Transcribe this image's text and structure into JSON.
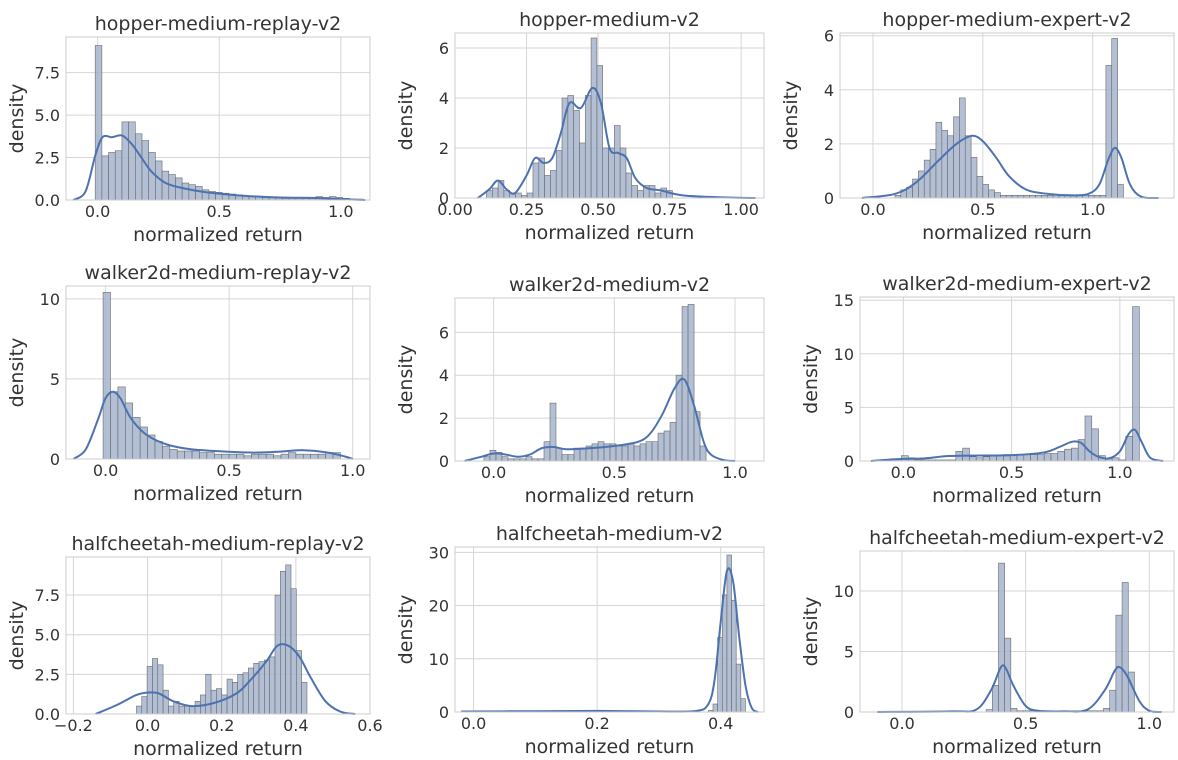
{
  "chart_data": [
    {
      "type": "bar",
      "title": "hopper-medium-replay-v2",
      "xlabel": "normalized return",
      "ylabel": "density",
      "xlim": [
        -0.13,
        1.12
      ],
      "ylim": [
        0,
        9.6
      ],
      "xticks": [
        0.0,
        0.5,
        1.0
      ],
      "xtick_labels": [
        "0.0",
        "0.5",
        "1.0"
      ],
      "yticks": [
        0,
        2.5,
        5.0,
        7.5
      ],
      "ytick_labels": [
        "0.0",
        "2.5",
        "5.0",
        "7.5"
      ],
      "bin_edges": [
        -0.01,
        1.09
      ],
      "bar_values": [
        9.1,
        2.6,
        2.8,
        2.9,
        4.6,
        4.6,
        3.9,
        3.5,
        2.8,
        2.3,
        1.7,
        1.5,
        1.3,
        1.0,
        0.9,
        0.8,
        0.6,
        0.5,
        0.45,
        0.4,
        0.35,
        0.3,
        0.25,
        0.2,
        0.2,
        0.15,
        0.15,
        0.12,
        0.1,
        0.1,
        0.1,
        0.1,
        0.1,
        0.2,
        0.15,
        0.2,
        0.15,
        0.1,
        0.05,
        0.05
      ],
      "kde": {
        "x": [
          -0.1,
          -0.05,
          -0.01,
          0.02,
          0.06,
          0.1,
          0.14,
          0.18,
          0.22,
          0.28,
          0.35,
          0.45,
          0.6,
          0.75,
          0.9,
          1.0,
          1.1
        ],
        "y": [
          0,
          0.5,
          2.6,
          3.7,
          3.7,
          3.8,
          3.3,
          2.5,
          1.7,
          1.0,
          0.7,
          0.45,
          0.25,
          0.15,
          0.12,
          0.05,
          0
        ]
      }
    },
    {
      "type": "bar",
      "title": "hopper-medium-v2",
      "xlabel": "normalized return",
      "ylabel": "density",
      "xlim": [
        0.0,
        1.08
      ],
      "ylim": [
        0,
        6.6
      ],
      "xticks": [
        0.0,
        0.25,
        0.5,
        0.75,
        1.0
      ],
      "xtick_labels": [
        "0.00",
        "0.25",
        "0.50",
        "0.75",
        "1.00"
      ],
      "yticks": [
        0,
        2,
        4,
        6
      ],
      "ytick_labels": [
        "0",
        "2",
        "4",
        "6"
      ],
      "bin_edges": [
        0.11,
        0.76
      ],
      "bar_values": [
        0.3,
        0.4,
        0.7,
        0.3,
        0.2,
        0.2,
        0.1,
        0.2,
        1.4,
        1.6,
        0.9,
        1.1,
        1.9,
        4.0,
        4.1,
        3.5,
        2.2,
        4.1,
        6.4,
        5.3,
        2.0,
        2.0,
        2.9,
        2.0,
        1.0,
        0.5,
        0.3,
        0.5,
        0.5,
        0.2,
        0.4,
        0.3
      ],
      "kde": {
        "x": [
          0.08,
          0.12,
          0.15,
          0.18,
          0.21,
          0.25,
          0.28,
          0.31,
          0.34,
          0.37,
          0.4,
          0.44,
          0.48,
          0.51,
          0.54,
          0.57,
          0.6,
          0.63,
          0.67,
          0.72,
          0.8,
          0.95,
          1.05
        ],
        "y": [
          0,
          0.35,
          0.7,
          0.35,
          0.2,
          0.9,
          1.6,
          1.4,
          1.6,
          2.6,
          3.8,
          3.6,
          4.4,
          3.8,
          2.0,
          1.8,
          1.6,
          0.8,
          0.4,
          0.3,
          0.1,
          0.02,
          0
        ]
      }
    },
    {
      "type": "bar",
      "title": "hopper-medium-expert-v2",
      "xlabel": "normalized return",
      "ylabel": "density",
      "xlim": [
        -0.15,
        1.37
      ],
      "ylim": [
        0,
        6.1
      ],
      "xticks": [
        0.0,
        0.5,
        1.0
      ],
      "xtick_labels": [
        "0.0",
        "0.5",
        "1.0"
      ],
      "yticks": [
        0,
        2,
        4,
        6
      ],
      "ytick_labels": [
        "0",
        "2",
        "4",
        "6"
      ],
      "bin_edges": [
        0.1,
        1.14
      ],
      "bar_values": [
        0.1,
        0.3,
        0.4,
        0.7,
        1.0,
        1.4,
        1.8,
        2.8,
        2.5,
        2.3,
        3.0,
        3.7,
        2.3,
        1.5,
        0.8,
        0.5,
        0.3,
        0.2,
        0.1,
        0.1,
        0.1,
        0.1,
        0.1,
        0.1,
        0.1,
        0.1,
        0.1,
        0.1,
        0.1,
        0.1,
        0.1,
        0.1,
        0.1,
        0.1,
        0.1,
        0.1,
        4.9,
        5.9,
        0.5
      ],
      "kde": {
        "x": [
          -0.05,
          0.1,
          0.2,
          0.3,
          0.38,
          0.45,
          0.5,
          0.56,
          0.62,
          0.7,
          0.8,
          0.9,
          0.98,
          1.03,
          1.07,
          1.1,
          1.13,
          1.17,
          1.22,
          1.3
        ],
        "y": [
          0,
          0.15,
          0.6,
          1.4,
          2.0,
          2.3,
          2.1,
          1.5,
          0.8,
          0.3,
          0.15,
          0.1,
          0.15,
          0.5,
          1.4,
          1.85,
          1.5,
          0.5,
          0.05,
          0
        ]
      }
    },
    {
      "type": "bar",
      "title": "walker2d-medium-replay-v2",
      "xlabel": "normalized return",
      "ylabel": "density",
      "xlim": [
        -0.16,
        1.07
      ],
      "ylim": [
        0,
        10.8
      ],
      "xticks": [
        0.0,
        0.5,
        1.0
      ],
      "xtick_labels": [
        "0.0",
        "0.5",
        "1.0"
      ],
      "yticks": [
        0,
        5,
        10
      ],
      "ytick_labels": [
        "0",
        "5",
        "10"
      ],
      "bin_edges": [
        -0.01,
        0.95
      ],
      "bar_values": [
        10.4,
        4.2,
        4.5,
        3.5,
        2.6,
        2.0,
        1.5,
        1.1,
        0.8,
        0.6,
        0.5,
        0.5,
        0.5,
        0.4,
        0.4,
        0.3,
        0.3,
        0.3,
        0.3,
        0.2,
        0.3,
        0.3,
        0.3,
        0.2,
        0.3,
        0.4,
        0.3,
        0.3,
        0.3,
        0.3,
        0.4,
        0.4
      ],
      "kde": {
        "x": [
          -0.13,
          -0.08,
          -0.03,
          0.0,
          0.03,
          0.06,
          0.1,
          0.15,
          0.2,
          0.26,
          0.35,
          0.5,
          0.6,
          0.7,
          0.8,
          0.9,
          0.97,
          1.0
        ],
        "y": [
          0,
          0.6,
          2.5,
          3.8,
          4.2,
          3.8,
          2.6,
          1.7,
          1.2,
          0.85,
          0.6,
          0.45,
          0.4,
          0.45,
          0.55,
          0.4,
          0.15,
          0
        ]
      }
    },
    {
      "type": "bar",
      "title": "walker2d-medium-v2",
      "xlabel": "normalized return",
      "ylabel": "density",
      "xlim": [
        -0.16,
        1.12
      ],
      "ylim": [
        0,
        7.6
      ],
      "xticks": [
        0.0,
        0.5,
        1.0
      ],
      "xtick_labels": [
        "0.0",
        "0.5",
        "1.0"
      ],
      "yticks": [
        0,
        2,
        4,
        6
      ],
      "ytick_labels": [
        "0",
        "2",
        "4",
        "6"
      ],
      "bin_edges": [
        -0.04,
        0.88
      ],
      "bar_values": [
        0.2,
        0.5,
        0.4,
        0.2,
        0.1,
        0.1,
        0.1,
        0.2,
        0.1,
        0.1,
        0.9,
        2.7,
        0.6,
        0.3,
        0.3,
        0.6,
        0.6,
        0.7,
        0.8,
        0.9,
        0.8,
        0.8,
        0.7,
        0.7,
        0.8,
        0.7,
        0.8,
        0.9,
        0.9,
        1.3,
        1.4,
        1.8,
        4.0,
        7.2,
        7.3,
        2.3,
        0.7
      ],
      "kde": {
        "x": [
          -0.12,
          -0.05,
          0.0,
          0.05,
          0.1,
          0.15,
          0.2,
          0.25,
          0.3,
          0.4,
          0.5,
          0.6,
          0.65,
          0.7,
          0.75,
          0.79,
          0.83,
          0.87,
          0.9,
          0.95,
          1.0
        ],
        "y": [
          0,
          0.2,
          0.35,
          0.3,
          0.2,
          0.3,
          0.6,
          0.65,
          0.55,
          0.6,
          0.7,
          0.9,
          1.3,
          2.2,
          3.4,
          3.8,
          2.6,
          0.9,
          0.3,
          0.05,
          0
        ]
      }
    },
    {
      "type": "bar",
      "title": "walker2d-medium-expert-v2",
      "xlabel": "normalized return",
      "ylabel": "density",
      "xlim": [
        -0.2,
        1.25
      ],
      "ylim": [
        0,
        15.3
      ],
      "xticks": [
        0.0,
        0.5,
        1.0
      ],
      "xtick_labels": [
        "0.0",
        "0.5",
        "1.0"
      ],
      "yticks": [
        0,
        5,
        10,
        15
      ],
      "ytick_labels": [
        "0",
        "5",
        "10",
        "15"
      ],
      "bin_edges": [
        -0.04,
        1.09
      ],
      "bar_values": [
        0.2,
        0.5,
        0.3,
        0.1,
        0.1,
        0.1,
        0.1,
        0.1,
        0.1,
        0.9,
        1.2,
        0.4,
        0.3,
        0.4,
        0.5,
        0.5,
        0.6,
        0.5,
        0.6,
        0.6,
        0.6,
        0.6,
        0.7,
        0.7,
        0.9,
        1.1,
        1.2,
        2.0,
        4.2,
        3.0,
        0.5,
        0.2,
        0.3,
        0.1,
        2.3,
        14.4
      ],
      "kde": {
        "x": [
          -0.15,
          -0.05,
          0.0,
          0.1,
          0.2,
          0.3,
          0.5,
          0.65,
          0.72,
          0.78,
          0.82,
          0.86,
          0.9,
          0.95,
          1.0,
          1.04,
          1.07,
          1.1,
          1.14,
          1.2
        ],
        "y": [
          0,
          0.15,
          0.2,
          0.25,
          0.45,
          0.5,
          0.55,
          0.8,
          1.3,
          1.8,
          1.7,
          0.9,
          0.4,
          0.25,
          0.9,
          2.5,
          2.9,
          1.8,
          0.3,
          0
        ]
      }
    },
    {
      "type": "bar",
      "title": "halfcheetah-medium-replay-v2",
      "xlabel": "normalized return",
      "ylabel": "density",
      "xlim": [
        -0.22,
        0.6
      ],
      "ylim": [
        0,
        9.9
      ],
      "xticks": [
        -0.2,
        0.0,
        0.2,
        0.4,
        0.6
      ],
      "xtick_labels": [
        "−0.2",
        "0.0",
        "0.2",
        "0.4",
        "0.6"
      ],
      "yticks": [
        0,
        2.5,
        5.0,
        7.5
      ],
      "ytick_labels": [
        "0.0",
        "2.5",
        "5.0",
        "7.5"
      ],
      "bin_edges": [
        -0.03,
        0.43
      ],
      "bar_values": [
        0.5,
        1.1,
        3.0,
        3.5,
        3.1,
        1.5,
        0.5,
        0.8,
        0.5,
        0.5,
        0.5,
        0.8,
        1.2,
        2.5,
        1.5,
        1.6,
        1.2,
        2.2,
        2.0,
        2.5,
        2.6,
        2.9,
        3.2,
        3.3,
        3.4,
        3.6,
        7.5,
        9.0,
        9.4,
        7.9,
        4.0,
        2.0
      ],
      "kde": {
        "x": [
          -0.14,
          -0.08,
          -0.03,
          0.0,
          0.03,
          0.07,
          0.12,
          0.18,
          0.24,
          0.28,
          0.32,
          0.35,
          0.38,
          0.41,
          0.44,
          0.48,
          0.52,
          0.56
        ],
        "y": [
          0,
          0.6,
          1.2,
          1.35,
          1.3,
          0.8,
          0.5,
          0.7,
          1.3,
          2.2,
          3.3,
          4.3,
          4.3,
          3.6,
          2.3,
          0.8,
          0.15,
          0
        ]
      }
    },
    {
      "type": "bar",
      "title": "halfcheetah-medium-v2",
      "xlabel": "normalized return",
      "ylabel": "density",
      "xlim": [
        -0.03,
        0.47
      ],
      "ylim": [
        0,
        31
      ],
      "xticks": [
        0.0,
        0.2,
        0.4
      ],
      "xtick_labels": [
        "0.0",
        "0.2",
        "0.4"
      ],
      "yticks": [
        0,
        10,
        20,
        30
      ],
      "ytick_labels": [
        "0",
        "10",
        "20",
        "30"
      ],
      "bin_edges": [
        0.38,
        0.44
      ],
      "bar_values": [
        0.3,
        1.5,
        14.0,
        22.0,
        29.5,
        21.0,
        9.0,
        2.5
      ],
      "kde": {
        "x": [
          -0.02,
          0.1,
          0.2,
          0.3,
          0.36,
          0.38,
          0.39,
          0.4,
          0.41,
          0.42,
          0.43,
          0.44,
          0.45,
          0.46
        ],
        "y": [
          0.1,
          0.15,
          0.2,
          0.1,
          0.2,
          1.5,
          6.0,
          17.0,
          26.5,
          24.5,
          14.0,
          5.0,
          0.8,
          0
        ]
      }
    },
    {
      "type": "bar",
      "title": "halfcheetah-medium-expert-v2",
      "xlabel": "normalized return",
      "ylabel": "density",
      "xlim": [
        -0.17,
        1.1
      ],
      "ylim": [
        0,
        13.3
      ],
      "xticks": [
        0.0,
        0.5,
        1.0
      ],
      "xtick_labels": [
        "0.0",
        "0.5",
        "1.0"
      ],
      "yticks": [
        0,
        5,
        10
      ],
      "ytick_labels": [
        "0",
        "5",
        "10"
      ],
      "bin_edges": [
        0.34,
        0.94
      ],
      "bar_values": [
        0.2,
        2.2,
        12.3,
        6.1,
        0.3,
        0.1,
        0.1,
        0.1,
        0.1,
        0.1,
        0.1,
        0.1,
        0.1,
        0.1,
        0.1,
        0.1,
        0.1,
        0.1,
        0.1,
        0.3,
        1.8,
        8.0,
        10.7,
        3.3
      ],
      "kde": {
        "x": [
          -0.1,
          0.2,
          0.3,
          0.36,
          0.4,
          0.42,
          0.45,
          0.5,
          0.55,
          0.65,
          0.75,
          0.82,
          0.86,
          0.88,
          0.91,
          0.96,
          1.0,
          1.05
        ],
        "y": [
          0,
          0.05,
          0.2,
          1.8,
          3.7,
          3.6,
          2.2,
          0.5,
          0.1,
          0.05,
          0.2,
          1.8,
          3.4,
          3.7,
          3.0,
          0.9,
          0.1,
          0
        ]
      }
    }
  ]
}
